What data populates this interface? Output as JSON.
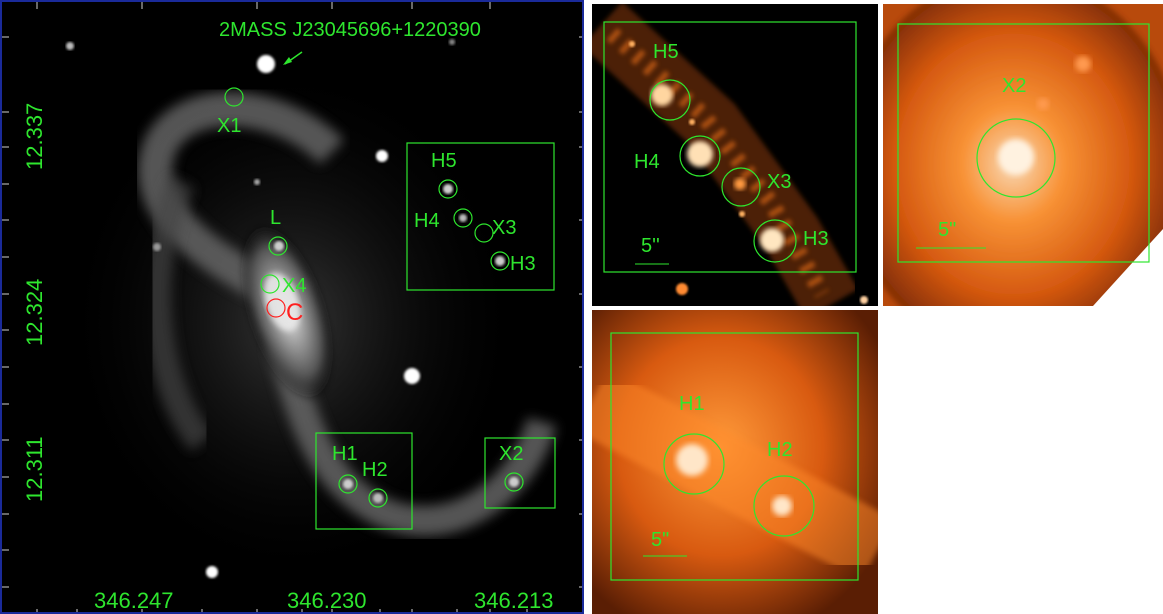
{
  "main": {
    "star_label": "2MASS J23045696+1220390",
    "labels": {
      "X1": "X1",
      "L": "L",
      "X4": "X4",
      "C": "C",
      "H5": "H5",
      "H4": "H4",
      "X3": "X3",
      "H3": "H3",
      "H1": "H1",
      "H2": "H2",
      "X2": "X2"
    },
    "dec_ticks": [
      "12.337",
      "12.324",
      "12.311"
    ],
    "ra_ticks": [
      "346.247",
      "346.230",
      "346.213"
    ]
  },
  "zoom_top": {
    "labels": [
      "H5",
      "H4",
      "X3",
      "H3"
    ],
    "scale": "5''"
  },
  "zoom_x2": {
    "label": "X2",
    "scale": "5\""
  },
  "zoom_bottom": {
    "labels": [
      "H1",
      "H2"
    ],
    "scale": "5\""
  },
  "colors": {
    "marker": "#2ee62e",
    "center": "#ff2020",
    "zoom_glow": "#ff7a1a"
  }
}
